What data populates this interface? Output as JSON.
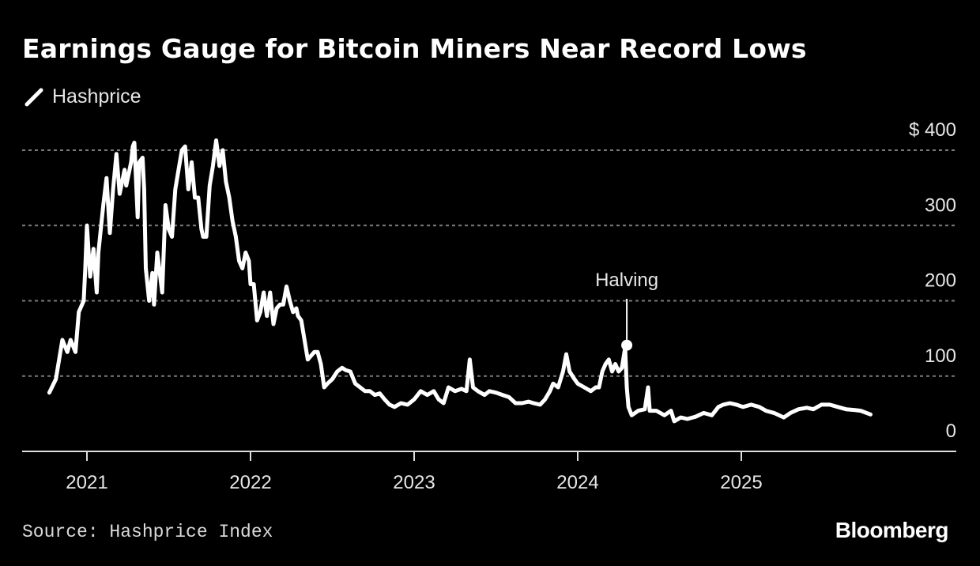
{
  "title": "Earnings Gauge for Bitcoin Miners Near Record Lows",
  "source": "Source: Hashprice Index",
  "logo": "Bloomberg",
  "colors": {
    "background": "#000000",
    "line": "#ffffff",
    "grid": "#7a7a7a"
  },
  "chart_data": {
    "type": "line",
    "title": "Earnings Gauge for Bitcoin Miners Near Record Lows",
    "xlabel": "",
    "ylabel": "",
    "y_unit_prefix": "$",
    "ylim": [
      0,
      400
    ],
    "yticks": [
      0,
      100,
      200,
      300,
      400
    ],
    "ytick_labels": [
      "0",
      "100",
      "200",
      "300",
      "$ 400"
    ],
    "xticks": [
      2021,
      2022,
      2023,
      2024,
      2025
    ],
    "xtick_labels": [
      "2021",
      "2022",
      "2023",
      "2024",
      "2025"
    ],
    "grid": "horizontal dotted",
    "legend": "top-left",
    "annotation": {
      "label": "Halving",
      "x": 2024.3,
      "y": 141
    },
    "series": [
      {
        "name": "Hashprice",
        "x": [
          2020.77,
          2020.81,
          2020.83,
          2020.85,
          2020.88,
          2020.9,
          2020.93,
          2020.95,
          2020.98,
          2020.99,
          2021.0,
          2021.02,
          2021.04,
          2021.06,
          2021.07,
          2021.1,
          2021.12,
          2021.14,
          2021.16,
          2021.18,
          2021.2,
          2021.23,
          2021.24,
          2021.27,
          2021.28,
          2021.29,
          2021.31,
          2021.32,
          2021.34,
          2021.35,
          2021.36,
          2021.38,
          2021.4,
          2021.41,
          2021.43,
          2021.46,
          2021.48,
          2021.5,
          2021.52,
          2021.54,
          2021.56,
          2021.58,
          2021.6,
          2021.62,
          2021.64,
          2021.66,
          2021.68,
          2021.7,
          2021.71,
          2021.73,
          2021.75,
          2021.77,
          2021.79,
          2021.81,
          2021.83,
          2021.85,
          2021.87,
          2021.89,
          2021.91,
          2021.93,
          2021.95,
          2021.97,
          2021.99,
          2022.0,
          2022.02,
          2022.04,
          2022.06,
          2022.08,
          2022.1,
          2022.12,
          2022.14,
          2022.16,
          2022.18,
          2022.2,
          2022.22,
          2022.24,
          2022.26,
          2022.28,
          2022.29,
          2022.31,
          2022.33,
          2022.35,
          2022.37,
          2022.39,
          2022.41,
          2022.43,
          2022.45,
          2022.47,
          2022.5,
          2022.53,
          2022.56,
          2022.58,
          2022.61,
          2022.64,
          2022.67,
          2022.7,
          2022.73,
          2022.76,
          2022.79,
          2022.82,
          2022.85,
          2022.88,
          2022.92,
          2022.96,
          2023.0,
          2023.04,
          2023.08,
          2023.12,
          2023.15,
          2023.18,
          2023.21,
          2023.25,
          2023.29,
          2023.32,
          2023.34,
          2023.36,
          2023.39,
          2023.43,
          2023.46,
          2023.5,
          2023.54,
          2023.58,
          2023.62,
          2023.66,
          2023.7,
          2023.73,
          2023.77,
          2023.8,
          2023.83,
          2023.85,
          2023.88,
          2023.91,
          2023.93,
          2023.95,
          2023.98,
          2024.0,
          2024.04,
          2024.08,
          2024.11,
          2024.13,
          2024.15,
          2024.17,
          2024.19,
          2024.21,
          2024.23,
          2024.25,
          2024.27,
          2024.29,
          2024.3,
          2024.31,
          2024.33,
          2024.37,
          2024.41,
          2024.43,
          2024.44,
          2024.48,
          2024.53,
          2024.57,
          2024.59,
          2024.63,
          2024.67,
          2024.72,
          2024.77,
          2024.82,
          2024.86,
          2024.89,
          2024.93,
          2024.97,
          2025.01,
          2025.06,
          2025.11,
          2025.15,
          2025.2,
          2025.26,
          2025.3,
          2025.35,
          2025.4,
          2025.44,
          2025.49,
          2025.54,
          2025.59,
          2025.64,
          2025.69,
          2025.73,
          2025.79
        ],
        "values": [
          78,
          96,
          122,
          148,
          132,
          148,
          132,
          185,
          200,
          243,
          300,
          232,
          269,
          211,
          264,
          327,
          363,
          290,
          348,
          395,
          342,
          374,
          353,
          384,
          405,
          410,
          311,
          384,
          390,
          348,
          243,
          200,
          237,
          195,
          264,
          211,
          327,
          295,
          285,
          348,
          374,
          400,
          405,
          348,
          384,
          337,
          337,
          295,
          285,
          285,
          353,
          379,
          413,
          379,
          400,
          358,
          337,
          306,
          285,
          253,
          243,
          264,
          253,
          222,
          222,
          174,
          185,
          211,
          180,
          211,
          169,
          190,
          195,
          195,
          219,
          200,
          185,
          190,
          180,
          174,
          148,
          122,
          127,
          132,
          132,
          116,
          85,
          90,
          96,
          106,
          111,
          108,
          106,
          90,
          85,
          80,
          80,
          75,
          77,
          69,
          62,
          59,
          64,
          62,
          69,
          80,
          75,
          80,
          69,
          64,
          85,
          80,
          83,
          80,
          122,
          85,
          80,
          75,
          80,
          78,
          75,
          72,
          64,
          64,
          66,
          64,
          62,
          69,
          80,
          90,
          85,
          106,
          129,
          106,
          96,
          90,
          85,
          80,
          85,
          85,
          106,
          116,
          122,
          106,
          116,
          106,
          111,
          138,
          85,
          59,
          48,
          54,
          56,
          85,
          54,
          54,
          48,
          54,
          40,
          45,
          43,
          46,
          51,
          48,
          59,
          62,
          64,
          62,
          59,
          62,
          59,
          54,
          51,
          45,
          51,
          56,
          58,
          56,
          62,
          62,
          59,
          56,
          55,
          54,
          49
        ]
      }
    ]
  }
}
